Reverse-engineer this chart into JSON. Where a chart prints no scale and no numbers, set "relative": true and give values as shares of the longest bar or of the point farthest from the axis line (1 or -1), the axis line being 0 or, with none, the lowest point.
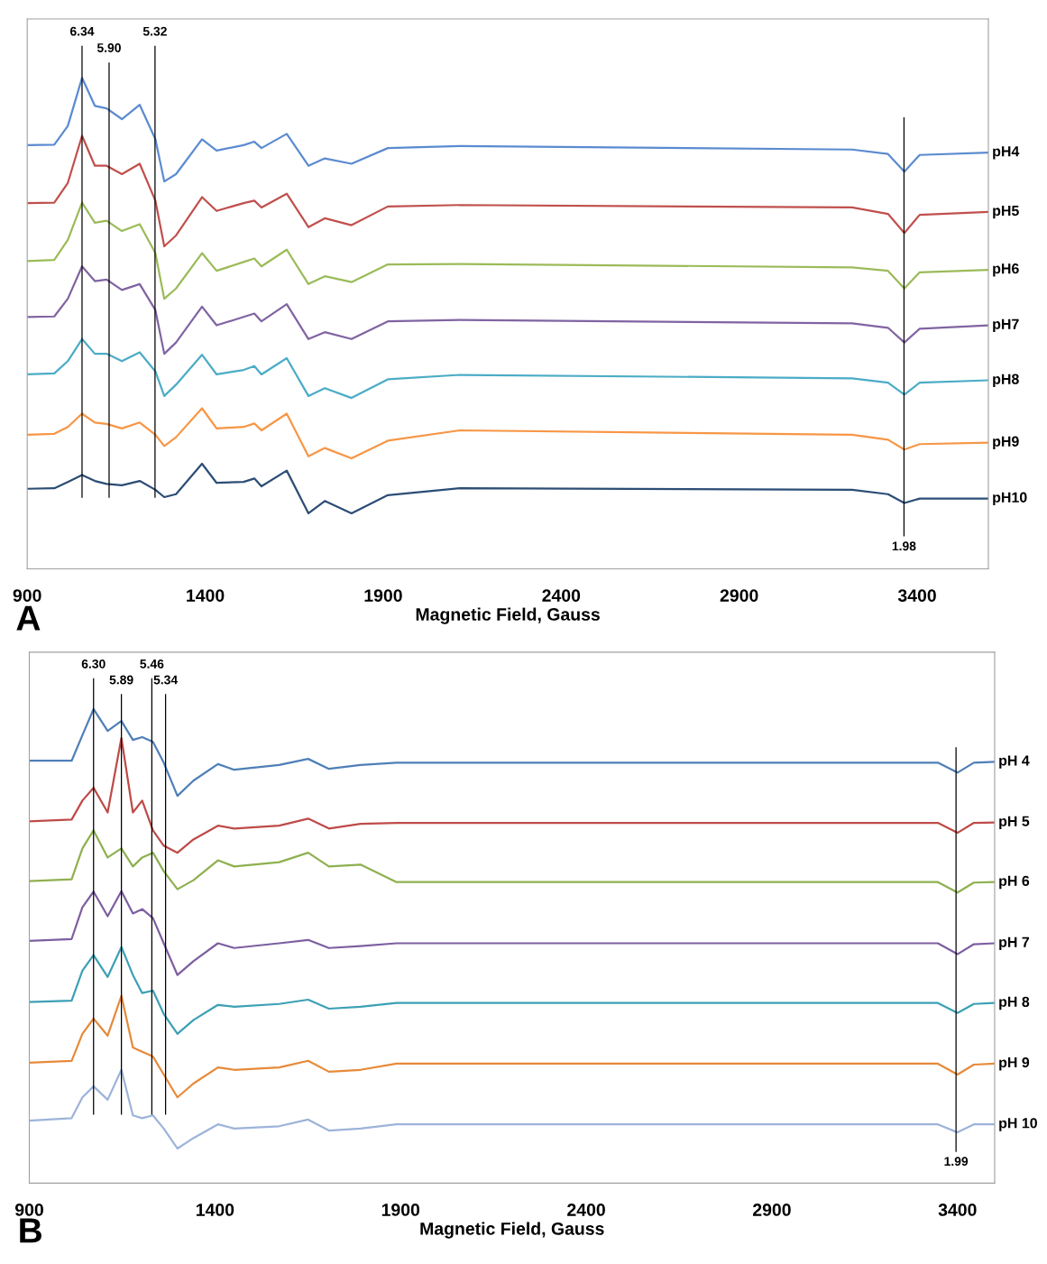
{
  "chart_data": [
    {
      "type": "line",
      "relative": true,
      "xlabel": "Magnetic Field, Gauss",
      "xlim": [
        900,
        3600
      ],
      "xticks": [
        900,
        1400,
        1900,
        2400,
        2900,
        3400
      ],
      "tick_labels": "x",
      "annotations": [
        "A",
        "6.34",
        "5.90",
        "5.32",
        "1.98"
      ],
      "x": [
        900,
        976,
        1014,
        1054,
        1090,
        1123,
        1166,
        1216,
        1260,
        1285,
        1318,
        1391,
        1432,
        1508,
        1538,
        1558,
        1629,
        1690,
        1736,
        1811,
        1913,
        2115,
        3217,
        3318,
        3364,
        3407,
        3600
      ],
      "ref_lines": [
        {
          "axis": "x",
          "value": 1054
        },
        {
          "axis": "x",
          "value": 1130
        },
        {
          "axis": "x",
          "value": 1259
        },
        {
          "axis": "x",
          "value": 3363
        }
      ],
      "series": [
        {
          "name": "pH4",
          "color": "#5b8bd0",
          "values": [
            0.863,
            0.864,
            0.902,
            1.0,
            0.943,
            0.938,
            0.916,
            0.945,
            0.875,
            0.789,
            0.804,
            0.875,
            0.852,
            0.863,
            0.87,
            0.857,
            0.886,
            0.821,
            0.836,
            0.825,
            0.857,
            0.861,
            0.854,
            0.845,
            0.809,
            0.843,
            0.848
          ]
        },
        {
          "name": "pH5",
          "color": "#c0504d",
          "values": [
            0.745,
            0.746,
            0.786,
            0.882,
            0.821,
            0.821,
            0.804,
            0.825,
            0.75,
            0.657,
            0.679,
            0.757,
            0.729,
            0.745,
            0.75,
            0.736,
            0.764,
            0.696,
            0.714,
            0.7,
            0.738,
            0.741,
            0.736,
            0.723,
            0.684,
            0.721,
            0.727
          ]
        },
        {
          "name": "pH6",
          "color": "#9bbb59",
          "values": [
            0.627,
            0.629,
            0.67,
            0.746,
            0.705,
            0.709,
            0.688,
            0.702,
            0.643,
            0.55,
            0.571,
            0.643,
            0.607,
            0.625,
            0.632,
            0.616,
            0.65,
            0.58,
            0.596,
            0.584,
            0.62,
            0.621,
            0.614,
            0.607,
            0.571,
            0.604,
            0.609
          ]
        },
        {
          "name": "pH7",
          "color": "#8064a2",
          "values": [
            0.513,
            0.514,
            0.55,
            0.616,
            0.586,
            0.589,
            0.568,
            0.58,
            0.527,
            0.438,
            0.461,
            0.534,
            0.496,
            0.513,
            0.52,
            0.504,
            0.539,
            0.468,
            0.482,
            0.468,
            0.504,
            0.507,
            0.5,
            0.491,
            0.461,
            0.489,
            0.496
          ]
        },
        {
          "name": "pH8",
          "color": "#4bacc6",
          "values": [
            0.396,
            0.398,
            0.423,
            0.468,
            0.438,
            0.438,
            0.423,
            0.441,
            0.402,
            0.352,
            0.375,
            0.436,
            0.396,
            0.405,
            0.413,
            0.396,
            0.429,
            0.352,
            0.368,
            0.348,
            0.386,
            0.395,
            0.388,
            0.379,
            0.355,
            0.379,
            0.384
          ]
        },
        {
          "name": "pH9",
          "color": "#f79646",
          "values": [
            0.273,
            0.275,
            0.289,
            0.316,
            0.298,
            0.295,
            0.286,
            0.298,
            0.273,
            0.25,
            0.268,
            0.327,
            0.286,
            0.289,
            0.296,
            0.282,
            0.316,
            0.229,
            0.246,
            0.225,
            0.261,
            0.282,
            0.273,
            0.263,
            0.243,
            0.254,
            0.257
          ]
        },
        {
          "name": "pH10",
          "color": "#2c4d75",
          "values": [
            0.163,
            0.164,
            0.177,
            0.191,
            0.179,
            0.173,
            0.17,
            0.179,
            0.161,
            0.146,
            0.152,
            0.214,
            0.175,
            0.177,
            0.184,
            0.168,
            0.2,
            0.113,
            0.138,
            0.113,
            0.15,
            0.164,
            0.161,
            0.152,
            0.134,
            0.143,
            0.143
          ]
        }
      ]
    },
    {
      "type": "line",
      "relative": true,
      "xlabel": "Magnetic Field, Gauss",
      "xlim": [
        900,
        3500
      ],
      "xticks": [
        900,
        1400,
        1900,
        2400,
        2900,
        3400
      ],
      "tick_labels": "x",
      "annotations": [
        "B",
        "6.30",
        "5.89",
        "5.46",
        "5.34",
        "1.99"
      ],
      "x": [
        900,
        1014,
        1043,
        1073,
        1111,
        1148,
        1179,
        1204,
        1233,
        1262,
        1299,
        1342,
        1408,
        1452,
        1573,
        1651,
        1707,
        1792,
        1889,
        3347,
        3400,
        3444,
        3500
      ],
      "ref_lines": [
        {
          "axis": "x",
          "value": 1073
        },
        {
          "axis": "x",
          "value": 1148
        },
        {
          "axis": "x",
          "value": 1230
        },
        {
          "axis": "x",
          "value": 1267
        },
        {
          "axis": "x",
          "value": 3396
        }
      ],
      "series": [
        {
          "name": "pH 4",
          "color": "#4f7fb8",
          "values": [
            0.891,
            0.891,
            0.945,
            1.0,
            0.954,
            0.975,
            0.935,
            0.941,
            0.931,
            0.887,
            0.817,
            0.849,
            0.884,
            0.872,
            0.882,
            0.895,
            0.874,
            0.882,
            0.887,
            0.887,
            0.866,
            0.887,
            0.889
          ]
        },
        {
          "name": "pH 5",
          "color": "#be4b48",
          "values": [
            0.763,
            0.767,
            0.807,
            0.834,
            0.782,
            0.939,
            0.782,
            0.807,
            0.744,
            0.712,
            0.697,
            0.725,
            0.754,
            0.748,
            0.754,
            0.769,
            0.748,
            0.758,
            0.76,
            0.76,
            0.739,
            0.76,
            0.761
          ]
        },
        {
          "name": "pH 6",
          "color": "#8eb04f",
          "values": [
            0.637,
            0.641,
            0.706,
            0.744,
            0.687,
            0.706,
            0.668,
            0.687,
            0.697,
            0.658,
            0.62,
            0.639,
            0.681,
            0.668,
            0.677,
            0.697,
            0.668,
            0.672,
            0.635,
            0.635,
            0.613,
            0.634,
            0.635
          ]
        },
        {
          "name": "pH 7",
          "color": "#7d5fa0",
          "values": [
            0.511,
            0.515,
            0.582,
            0.615,
            0.563,
            0.616,
            0.569,
            0.578,
            0.559,
            0.506,
            0.439,
            0.468,
            0.506,
            0.496,
            0.506,
            0.513,
            0.496,
            0.5,
            0.506,
            0.506,
            0.483,
            0.504,
            0.506
          ]
        },
        {
          "name": "pH 8",
          "color": "#3ca0b5",
          "values": [
            0.382,
            0.385,
            0.448,
            0.481,
            0.435,
            0.498,
            0.439,
            0.401,
            0.406,
            0.357,
            0.315,
            0.344,
            0.376,
            0.372,
            0.378,
            0.387,
            0.368,
            0.372,
            0.38,
            0.38,
            0.359,
            0.378,
            0.38
          ]
        },
        {
          "name": "pH 9",
          "color": "#e68a3a",
          "values": [
            0.254,
            0.258,
            0.315,
            0.347,
            0.311,
            0.395,
            0.286,
            0.277,
            0.267,
            0.229,
            0.181,
            0.21,
            0.244,
            0.239,
            0.244,
            0.258,
            0.235,
            0.239,
            0.252,
            0.252,
            0.229,
            0.25,
            0.252
          ]
        },
        {
          "name": "pH 10",
          "color": "#9db3d9",
          "values": [
            0.132,
            0.137,
            0.181,
            0.204,
            0.176,
            0.239,
            0.143,
            0.137,
            0.143,
            0.115,
            0.073,
            0.095,
            0.124,
            0.115,
            0.12,
            0.134,
            0.111,
            0.115,
            0.124,
            0.124,
            0.107,
            0.124,
            0.124
          ]
        }
      ]
    }
  ]
}
